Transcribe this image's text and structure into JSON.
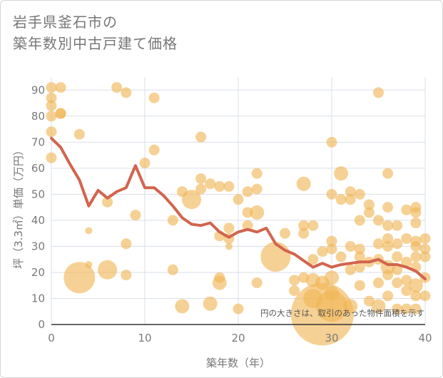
{
  "title_line1": "岩手県釜石市の",
  "title_line2": "築年数別中古戸建て価格",
  "chart_data": {
    "type": "scatter",
    "title": "岩手県釜石市の 築年数別中古戸建て価格",
    "xlabel": "築年数（年）",
    "ylabel": "坪（3.3㎡）単価（万円）",
    "xlim": [
      0,
      40
    ],
    "ylim": [
      0,
      95
    ],
    "xticks": [
      0,
      10,
      20,
      30,
      40
    ],
    "yticks": [
      0,
      10,
      20,
      30,
      40,
      50,
      60,
      70,
      80,
      90
    ],
    "grid": true,
    "note": "円の大きさは、取引のあった物件面積を示す",
    "colors": {
      "bubble": "#f0b454",
      "line": "#d2644e",
      "axis_text": "#7a7a7a",
      "grid": "#d9dfe8"
    },
    "bubbles": [
      {
        "x": 0,
        "y": 91,
        "s": 2
      },
      {
        "x": 0,
        "y": 87,
        "s": 2
      },
      {
        "x": 0,
        "y": 84,
        "s": 2
      },
      {
        "x": 0,
        "y": 80,
        "s": 2
      },
      {
        "x": 0,
        "y": 74,
        "s": 2
      },
      {
        "x": 0,
        "y": 64,
        "s": 2
      },
      {
        "x": 1,
        "y": 91,
        "s": 2
      },
      {
        "x": 1,
        "y": 81,
        "s": 2
      },
      {
        "x": 1,
        "y": 81,
        "s": 2
      },
      {
        "x": 3,
        "y": 73,
        "s": 2
      },
      {
        "x": 3,
        "y": 18,
        "s": 7
      },
      {
        "x": 4,
        "y": 36,
        "s": 1
      },
      {
        "x": 4,
        "y": 23,
        "s": 1
      },
      {
        "x": 6,
        "y": 47,
        "s": 2
      },
      {
        "x": 6,
        "y": 21,
        "s": 4
      },
      {
        "x": 7,
        "y": 91,
        "s": 2
      },
      {
        "x": 8,
        "y": 89,
        "s": 2
      },
      {
        "x": 8,
        "y": 31,
        "s": 2
      },
      {
        "x": 8,
        "y": 19,
        "s": 2
      },
      {
        "x": 9,
        "y": 42,
        "s": 2
      },
      {
        "x": 10,
        "y": 62,
        "s": 2
      },
      {
        "x": 11,
        "y": 87,
        "s": 2
      },
      {
        "x": 11,
        "y": 67,
        "s": 2
      },
      {
        "x": 13,
        "y": 40,
        "s": 2
      },
      {
        "x": 13,
        "y": 21,
        "s": 2
      },
      {
        "x": 14,
        "y": 51,
        "s": 2
      },
      {
        "x": 14,
        "y": 7,
        "s": 3
      },
      {
        "x": 15,
        "y": 48,
        "s": 4
      },
      {
        "x": 16,
        "y": 72,
        "s": 2
      },
      {
        "x": 16,
        "y": 56,
        "s": 2
      },
      {
        "x": 16,
        "y": 52,
        "s": 2
      },
      {
        "x": 17,
        "y": 54,
        "s": 2
      },
      {
        "x": 17,
        "y": 8,
        "s": 3
      },
      {
        "x": 18,
        "y": 53,
        "s": 2
      },
      {
        "x": 18,
        "y": 34,
        "s": 2
      },
      {
        "x": 18,
        "y": 18,
        "s": 2
      },
      {
        "x": 18,
        "y": 16,
        "s": 3
      },
      {
        "x": 19,
        "y": 53,
        "s": 2
      },
      {
        "x": 19,
        "y": 37,
        "s": 2
      },
      {
        "x": 19,
        "y": 33,
        "s": 2
      },
      {
        "x": 19,
        "y": 30,
        "s": 1
      },
      {
        "x": 20,
        "y": 48,
        "s": 2
      },
      {
        "x": 20,
        "y": 6,
        "s": 2
      },
      {
        "x": 21,
        "y": 51,
        "s": 2
      },
      {
        "x": 21,
        "y": 43,
        "s": 2
      },
      {
        "x": 21,
        "y": 38,
        "s": 2
      },
      {
        "x": 22,
        "y": 58,
        "s": 2
      },
      {
        "x": 22,
        "y": 52,
        "s": 2
      },
      {
        "x": 22,
        "y": 43,
        "s": 3
      },
      {
        "x": 22,
        "y": 16,
        "s": 2
      },
      {
        "x": 24,
        "y": 26,
        "s": 6
      },
      {
        "x": 25,
        "y": 35,
        "s": 2
      },
      {
        "x": 26,
        "y": 17,
        "s": 2
      },
      {
        "x": 26,
        "y": 13,
        "s": 2
      },
      {
        "x": 27,
        "y": 54,
        "s": 3
      },
      {
        "x": 27,
        "y": 38,
        "s": 2
      },
      {
        "x": 27,
        "y": 35,
        "s": 2
      },
      {
        "x": 27,
        "y": 18,
        "s": 2
      },
      {
        "x": 28,
        "y": 38,
        "s": 2
      },
      {
        "x": 28,
        "y": 25,
        "s": 2
      },
      {
        "x": 28,
        "y": 17,
        "s": 3
      },
      {
        "x": 28,
        "y": 10,
        "s": 4
      },
      {
        "x": 29,
        "y": 28,
        "s": 2
      },
      {
        "x": 29,
        "y": 16,
        "s": 3
      },
      {
        "x": 29,
        "y": 4,
        "s": 9
      },
      {
        "x": 30,
        "y": 70,
        "s": 2
      },
      {
        "x": 30,
        "y": 50,
        "s": 2
      },
      {
        "x": 30,
        "y": 32,
        "s": 2
      },
      {
        "x": 30,
        "y": 29,
        "s": 2
      },
      {
        "x": 30,
        "y": 18,
        "s": 3
      },
      {
        "x": 30,
        "y": 12,
        "s": 3
      },
      {
        "x": 30,
        "y": 7,
        "s": 7
      },
      {
        "x": 31,
        "y": 58,
        "s": 3
      },
      {
        "x": 31,
        "y": 48,
        "s": 2
      },
      {
        "x": 31,
        "y": 26,
        "s": 2
      },
      {
        "x": 32,
        "y": 51,
        "s": 2
      },
      {
        "x": 32,
        "y": 48,
        "s": 2
      },
      {
        "x": 32,
        "y": 30,
        "s": 2
      },
      {
        "x": 32,
        "y": 21,
        "s": 2
      },
      {
        "x": 32,
        "y": 7,
        "s": 3
      },
      {
        "x": 33,
        "y": 50,
        "s": 2
      },
      {
        "x": 33,
        "y": 40,
        "s": 2
      },
      {
        "x": 33,
        "y": 29,
        "s": 2
      },
      {
        "x": 33,
        "y": 26,
        "s": 2
      },
      {
        "x": 33,
        "y": 22,
        "s": 2
      },
      {
        "x": 33,
        "y": 15,
        "s": 2
      },
      {
        "x": 34,
        "y": 46,
        "s": 2
      },
      {
        "x": 34,
        "y": 43,
        "s": 2
      },
      {
        "x": 34,
        "y": 24,
        "s": 2
      },
      {
        "x": 34,
        "y": 9,
        "s": 2
      },
      {
        "x": 35,
        "y": 89,
        "s": 2
      },
      {
        "x": 35,
        "y": 40,
        "s": 2
      },
      {
        "x": 35,
        "y": 31,
        "s": 2
      },
      {
        "x": 35,
        "y": 25,
        "s": 2
      },
      {
        "x": 35,
        "y": 16,
        "s": 2
      },
      {
        "x": 35,
        "y": 7,
        "s": 3
      },
      {
        "x": 36,
        "y": 58,
        "s": 2
      },
      {
        "x": 36,
        "y": 45,
        "s": 2
      },
      {
        "x": 36,
        "y": 38,
        "s": 2
      },
      {
        "x": 36,
        "y": 33,
        "s": 2
      },
      {
        "x": 36,
        "y": 30,
        "s": 2
      },
      {
        "x": 36,
        "y": 22,
        "s": 3
      },
      {
        "x": 36,
        "y": 19,
        "s": 2
      },
      {
        "x": 36,
        "y": 11,
        "s": 2
      },
      {
        "x": 37,
        "y": 38,
        "s": 2
      },
      {
        "x": 37,
        "y": 31,
        "s": 2
      },
      {
        "x": 37,
        "y": 26,
        "s": 2
      },
      {
        "x": 37,
        "y": 21,
        "s": 2
      },
      {
        "x": 37,
        "y": 16,
        "s": 2
      },
      {
        "x": 37,
        "y": 6,
        "s": 2
      },
      {
        "x": 38,
        "y": 44,
        "s": 2
      },
      {
        "x": 38,
        "y": 33,
        "s": 2
      },
      {
        "x": 38,
        "y": 24,
        "s": 2
      },
      {
        "x": 38,
        "y": 17,
        "s": 2
      },
      {
        "x": 38,
        "y": 13,
        "s": 2
      },
      {
        "x": 38,
        "y": 6,
        "s": 2
      },
      {
        "x": 39,
        "y": 45,
        "s": 2
      },
      {
        "x": 39,
        "y": 43,
        "s": 2
      },
      {
        "x": 39,
        "y": 39,
        "s": 2
      },
      {
        "x": 39,
        "y": 32,
        "s": 2
      },
      {
        "x": 39,
        "y": 30,
        "s": 2
      },
      {
        "x": 39,
        "y": 26,
        "s": 2
      },
      {
        "x": 39,
        "y": 22,
        "s": 2
      },
      {
        "x": 39,
        "y": 15,
        "s": 3
      },
      {
        "x": 39,
        "y": 11,
        "s": 2
      },
      {
        "x": 39,
        "y": 6,
        "s": 2
      },
      {
        "x": 40,
        "y": 33,
        "s": 2
      },
      {
        "x": 40,
        "y": 29,
        "s": 2
      },
      {
        "x": 40,
        "y": 26,
        "s": 2
      },
      {
        "x": 40,
        "y": 18,
        "s": 2
      },
      {
        "x": 40,
        "y": 11,
        "s": 2
      }
    ],
    "trend": {
      "x": [
        0,
        1,
        2,
        3,
        4,
        5,
        6,
        7,
        8,
        9,
        10,
        11,
        12,
        13,
        14,
        15,
        16,
        17,
        18,
        19,
        20,
        21,
        22,
        23,
        24,
        25,
        26,
        27,
        28,
        29,
        30,
        31,
        32,
        33,
        34,
        35,
        36,
        37,
        38,
        39,
        40
      ],
      "y": [
        71.5,
        68,
        61.5,
        55.5,
        45.5,
        51.5,
        48.5,
        51,
        52.5,
        61,
        52.5,
        52.5,
        49.5,
        45.5,
        41,
        38.5,
        38,
        39,
        35.5,
        33.5,
        35.5,
        36.5,
        35.5,
        37,
        31,
        28.5,
        27,
        24.5,
        22,
        23.5,
        22,
        23,
        23.5,
        24,
        24,
        25,
        23,
        23,
        22,
        20.5,
        17.5
      ]
    }
  }
}
